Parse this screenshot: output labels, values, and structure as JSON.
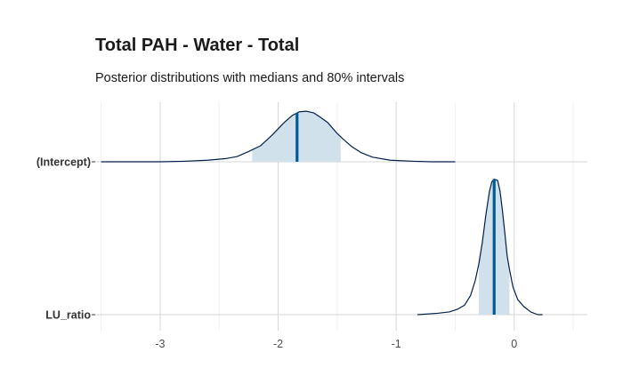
{
  "chart_data": {
    "type": "ridgeline",
    "title": "Total PAH - Water - Total",
    "subtitle": "Posterior distributions with medians and 80% intervals",
    "xlabel": "",
    "ylabel": "",
    "xlim": [
      -3.55,
      0.62
    ],
    "x_ticks": [
      -3,
      -2,
      -1,
      0
    ],
    "x_tick_labels": [
      "-3",
      "-2",
      "-1",
      "0"
    ],
    "grid": true,
    "legend": "none",
    "colors": {
      "fill": "#d1e1ec",
      "outline": "#011f4b",
      "median": "#005b96",
      "grid": "#d6d6d6"
    },
    "series": [
      {
        "name": "(Intercept)",
        "median": -1.84,
        "interval_80": [
          -2.22,
          -1.47
        ],
        "range": [
          -3.5,
          -0.5
        ],
        "density": [
          [
            -3.5,
            0.0
          ],
          [
            -3.0,
            0.0
          ],
          [
            -2.8,
            0.01
          ],
          [
            -2.6,
            0.03
          ],
          [
            -2.45,
            0.06
          ],
          [
            -2.35,
            0.1
          ],
          [
            -2.25,
            0.2
          ],
          [
            -2.15,
            0.31
          ],
          [
            -2.05,
            0.52
          ],
          [
            -1.95,
            0.76
          ],
          [
            -1.88,
            0.9
          ],
          [
            -1.82,
            0.97
          ],
          [
            -1.76,
            0.98
          ],
          [
            -1.7,
            0.95
          ],
          [
            -1.64,
            0.86
          ],
          [
            -1.58,
            0.76
          ],
          [
            -1.5,
            0.55
          ],
          [
            -1.45,
            0.44
          ],
          [
            -1.38,
            0.3
          ],
          [
            -1.3,
            0.18
          ],
          [
            -1.2,
            0.09
          ],
          [
            -1.05,
            0.03
          ],
          [
            -0.85,
            0.01
          ],
          [
            -0.7,
            0.0
          ],
          [
            -0.5,
            0.0
          ]
        ]
      },
      {
        "name": "LU_ratio",
        "median": -0.17,
        "interval_80": [
          -0.3,
          -0.04
        ],
        "range": [
          -0.82,
          0.24
        ],
        "density": [
          [
            -0.82,
            0.0
          ],
          [
            -0.65,
            0.01
          ],
          [
            -0.55,
            0.02
          ],
          [
            -0.48,
            0.04
          ],
          [
            -0.42,
            0.07
          ],
          [
            -0.37,
            0.14
          ],
          [
            -0.33,
            0.25
          ],
          [
            -0.3,
            0.37
          ],
          [
            -0.27,
            0.53
          ],
          [
            -0.24,
            0.73
          ],
          [
            -0.21,
            0.9
          ],
          [
            -0.19,
            0.97
          ],
          [
            -0.17,
            0.99
          ],
          [
            -0.14,
            0.98
          ],
          [
            -0.12,
            0.9
          ],
          [
            -0.1,
            0.76
          ],
          [
            -0.08,
            0.6
          ],
          [
            -0.06,
            0.43
          ],
          [
            -0.04,
            0.33
          ],
          [
            -0.01,
            0.2
          ],
          [
            0.03,
            0.11
          ],
          [
            0.08,
            0.06
          ],
          [
            0.14,
            0.02
          ],
          [
            0.2,
            0.0
          ],
          [
            0.24,
            0.0
          ]
        ]
      }
    ]
  }
}
